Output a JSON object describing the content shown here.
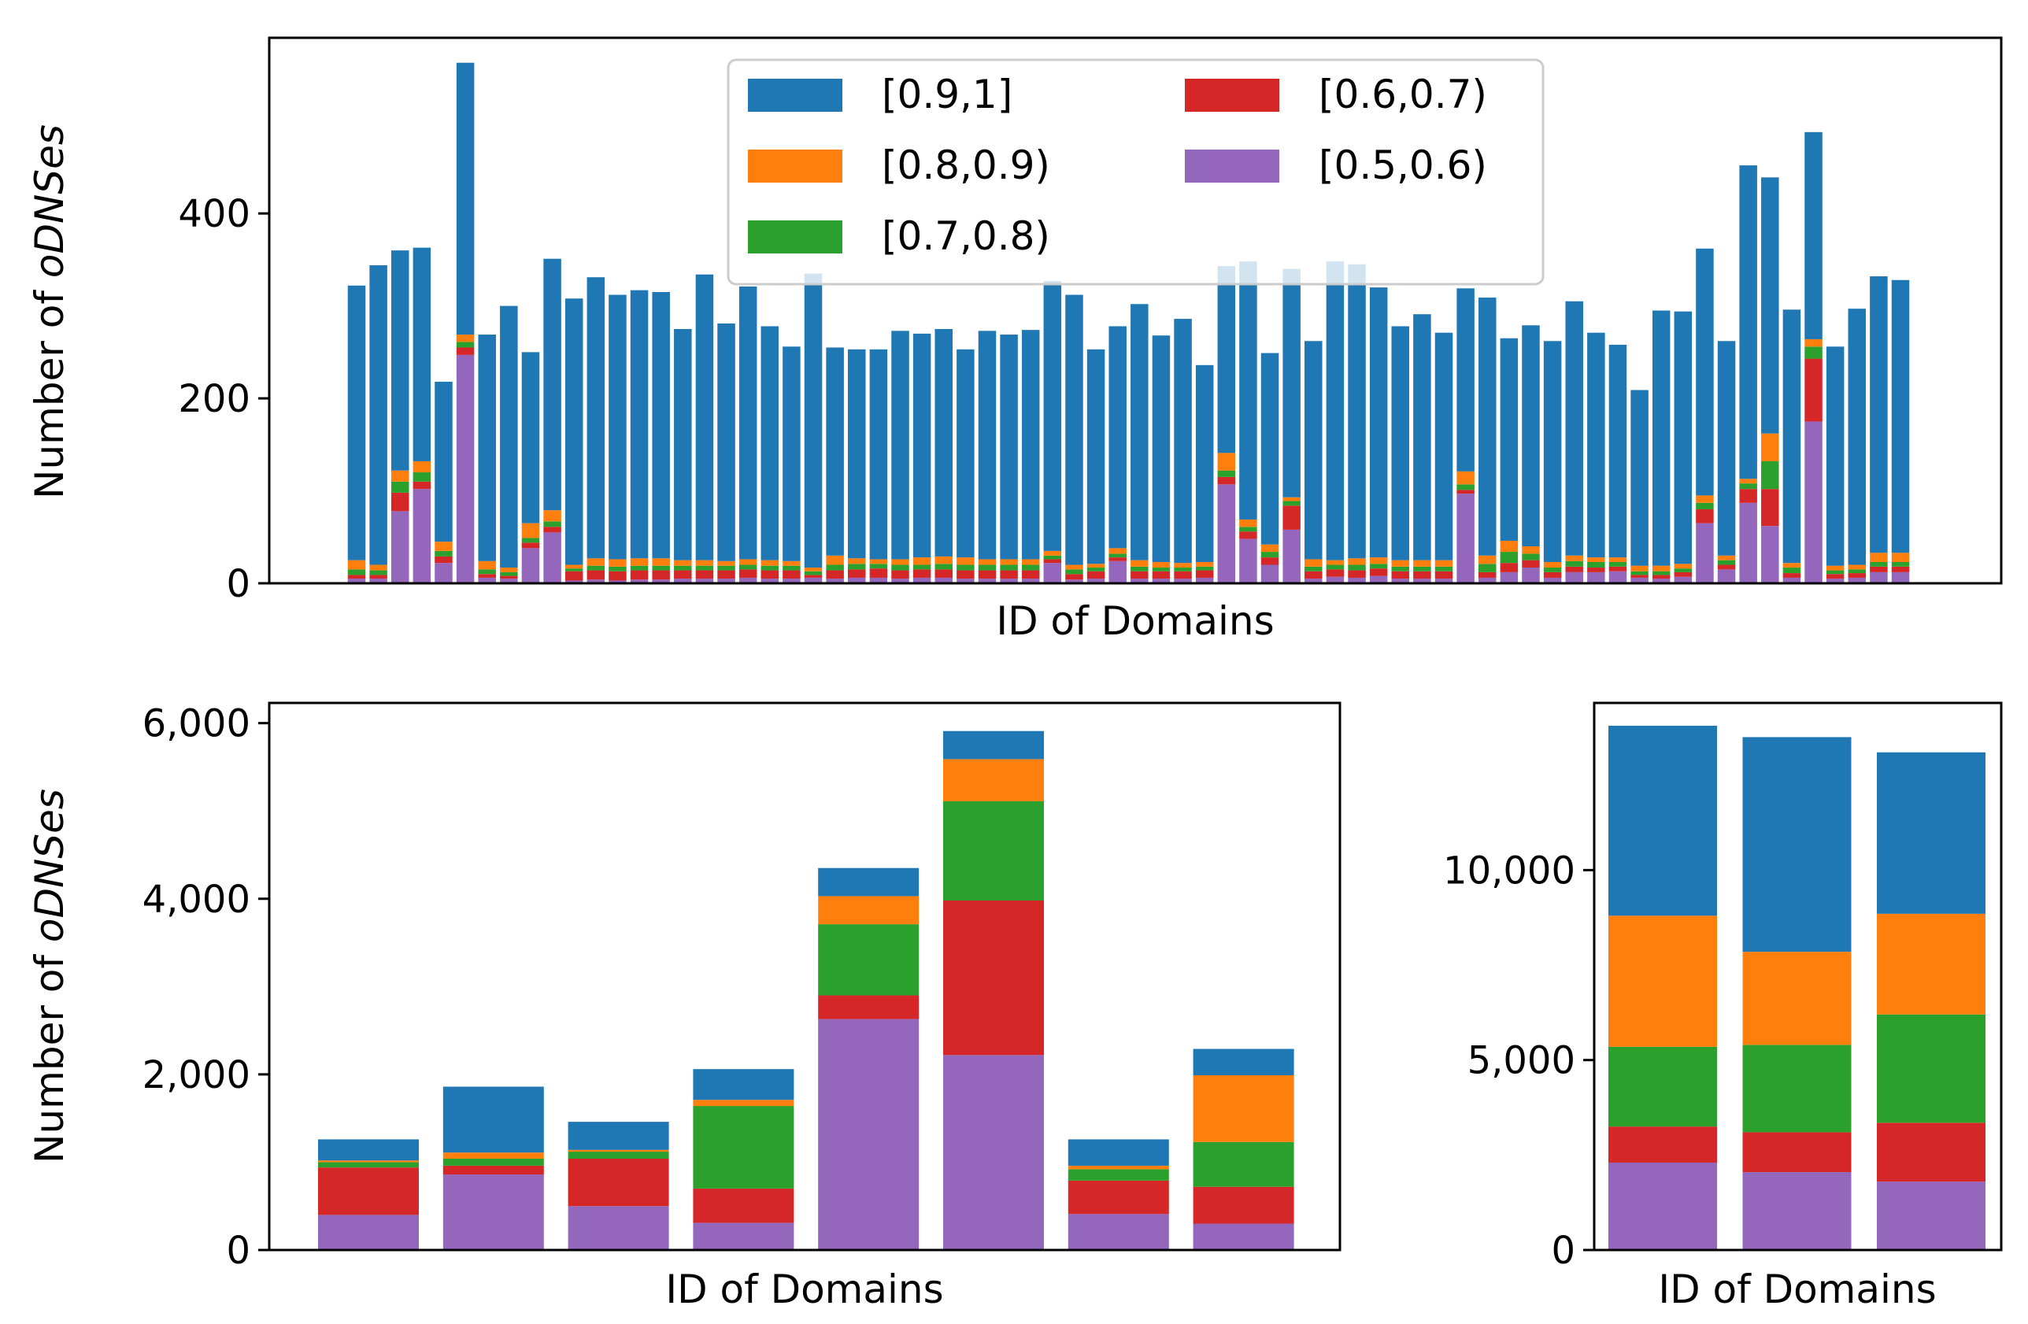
{
  "colors": {
    "[0.9,1]": "#1f77b4",
    "[0.8,0.9)": "#ff7f0e",
    "[0.7,0.8)": "#2ca02c",
    "[0.6,0.7)": "#d62728",
    "[0.5,0.6)": "#9467bd"
  },
  "chart_data": [
    {
      "type": "bar",
      "stacked": true,
      "xlabel": "ID of Domains",
      "ylabel_plain": "Number of ",
      "ylabel_italic": "oDNSes",
      "ylim": [
        0,
        590
      ],
      "yticks": [
        0,
        200,
        400
      ],
      "ytick_labels": [
        "0",
        "200",
        "400"
      ],
      "legend": {
        "position": "top-center",
        "ncol": 2,
        "entries": [
          "[0.9,1]",
          "[0.8,0.9)",
          "[0.7,0.8)",
          "[0.6,0.7)",
          "[0.5,0.6)"
        ]
      },
      "series_order_bottom_to_top": [
        "[0.5,0.6)",
        "[0.6,0.7)",
        "[0.7,0.8)",
        "[0.8,0.9)",
        "[0.9,1]"
      ],
      "totals": [
        322,
        344,
        360,
        363,
        218,
        563,
        269,
        300,
        250,
        351,
        308,
        331,
        312,
        317,
        315,
        275,
        334,
        281,
        321,
        278,
        256,
        335,
        255,
        253,
        253,
        273,
        270,
        275,
        253,
        273,
        269,
        274,
        327,
        312,
        253,
        278,
        302,
        268,
        286,
        236,
        343,
        348,
        249,
        340,
        262,
        348,
        345,
        320,
        278,
        291,
        271,
        319,
        309,
        265,
        279,
        262,
        305,
        271,
        258,
        209,
        295,
        294,
        362,
        262,
        452,
        439,
        296,
        488,
        256,
        297,
        332,
        328
      ],
      "series": [
        {
          "name": "[0.5,0.6)",
          "values": [
            5,
            5,
            78,
            102,
            22,
            247,
            6,
            5,
            38,
            55,
            3,
            4,
            3,
            4,
            4,
            5,
            5,
            5,
            6,
            5,
            5,
            6,
            5,
            6,
            6,
            5,
            6,
            6,
            5,
            5,
            5,
            5,
            22,
            4,
            5,
            24,
            5,
            5,
            5,
            6,
            107,
            48,
            20,
            58,
            5,
            7,
            6,
            8,
            5,
            5,
            5,
            97,
            6,
            12,
            17,
            6,
            12,
            12,
            13,
            6,
            5,
            7,
            65,
            15,
            87,
            62,
            6,
            175,
            5,
            6,
            12,
            12
          ]
        },
        {
          "name": "[0.6,0.7)",
          "values": [
            4,
            4,
            20,
            8,
            7,
            8,
            4,
            3,
            6,
            6,
            10,
            10,
            10,
            10,
            10,
            9,
            9,
            9,
            9,
            9,
            9,
            3,
            9,
            9,
            10,
            9,
            9,
            9,
            9,
            9,
            9,
            9,
            4,
            6,
            8,
            4,
            8,
            8,
            8,
            8,
            8,
            8,
            8,
            26,
            8,
            8,
            8,
            8,
            8,
            8,
            8,
            4,
            6,
            10,
            8,
            6,
            6,
            5,
            5,
            3,
            4,
            5,
            15,
            5,
            15,
            40,
            5,
            68,
            5,
            5,
            6,
            6
          ]
        },
        {
          "name": "[0.7,0.8)",
          "values": [
            6,
            5,
            12,
            10,
            6,
            6,
            5,
            4,
            5,
            6,
            3,
            5,
            5,
            5,
            5,
            5,
            5,
            5,
            5,
            5,
            5,
            4,
            6,
            6,
            5,
            6,
            5,
            6,
            6,
            6,
            6,
            6,
            4,
            5,
            4,
            4,
            5,
            4,
            4,
            4,
            7,
            5,
            6,
            5,
            5,
            5,
            6,
            5,
            5,
            5,
            5,
            6,
            9,
            12,
            7,
            5,
            6,
            6,
            5,
            4,
            4,
            4,
            7,
            5,
            6,
            30,
            6,
            13,
            4,
            4,
            5,
            5
          ]
        },
        {
          "name": "[0.8,0.9)",
          "values": [
            10,
            6,
            12,
            12,
            10,
            8,
            9,
            5,
            16,
            12,
            4,
            8,
            8,
            8,
            8,
            6,
            6,
            5,
            6,
            6,
            5,
            4,
            10,
            6,
            5,
            6,
            8,
            8,
            8,
            6,
            6,
            6,
            5,
            5,
            4,
            6,
            7,
            6,
            5,
            5,
            19,
            8,
            8,
            4,
            8,
            5,
            7,
            7,
            7,
            7,
            7,
            14,
            9,
            12,
            8,
            6,
            6,
            5,
            5,
            6,
            6,
            5,
            8,
            5,
            5,
            30,
            5,
            8,
            5,
            5,
            10,
            10
          ]
        },
        {
          "name": "[0.9,1]",
          "values": [
            297,
            324,
            238,
            231,
            173,
            294,
            245,
            283,
            185,
            272,
            288,
            304,
            286,
            290,
            288,
            250,
            309,
            257,
            295,
            253,
            232,
            318,
            225,
            226,
            227,
            247,
            242,
            246,
            225,
            247,
            243,
            248,
            292,
            292,
            232,
            240,
            277,
            245,
            264,
            213,
            202,
            279,
            207,
            247,
            236,
            323,
            318,
            292,
            253,
            266,
            246,
            198,
            279,
            219,
            239,
            239,
            275,
            243,
            230,
            190,
            276,
            273,
            267,
            232,
            339,
            277,
            274,
            224,
            237,
            277,
            299,
            295
          ]
        }
      ]
    },
    {
      "type": "bar",
      "stacked": true,
      "xlabel": "ID of Domains",
      "ylabel_plain": "Number of ",
      "ylabel_italic": "oDNSes",
      "ylim": [
        0,
        6230
      ],
      "yticks": [
        0,
        2000,
        4000,
        6000
      ],
      "ytick_labels": [
        "0",
        "2,000",
        "4,000",
        "6,000"
      ],
      "series": [
        {
          "name": "[0.5,0.6)",
          "values": [
            400,
            860,
            500,
            310,
            2630,
            2220,
            410,
            300
          ]
        },
        {
          "name": "[0.6,0.7)",
          "values": [
            540,
            100,
            540,
            390,
            270,
            1760,
            380,
            420
          ]
        },
        {
          "name": "[0.7,0.8)",
          "values": [
            60,
            80,
            80,
            940,
            810,
            1130,
            130,
            510
          ]
        },
        {
          "name": "[0.8,0.9)",
          "values": [
            20,
            70,
            20,
            70,
            320,
            480,
            40,
            760
          ]
        },
        {
          "name": "[0.9,1]",
          "values": [
            240,
            750,
            320,
            350,
            320,
            320,
            300,
            300
          ]
        }
      ]
    },
    {
      "type": "bar",
      "stacked": true,
      "xlabel": "ID of Domains",
      "ylim": [
        0,
        14400
      ],
      "yticks": [
        0,
        5000,
        10000
      ],
      "ytick_labels": [
        "0",
        "5,000",
        "10,000"
      ],
      "series": [
        {
          "name": "[0.5,0.6)",
          "values": [
            2300,
            2050,
            1800
          ]
        },
        {
          "name": "[0.6,0.7)",
          "values": [
            950,
            1050,
            1550
          ]
        },
        {
          "name": "[0.7,0.8)",
          "values": [
            2100,
            2300,
            2850
          ]
        },
        {
          "name": "[0.8,0.9)",
          "values": [
            3450,
            2450,
            2650
          ]
        },
        {
          "name": "[0.9,1]",
          "values": [
            5000,
            5650,
            4250
          ]
        }
      ]
    }
  ]
}
